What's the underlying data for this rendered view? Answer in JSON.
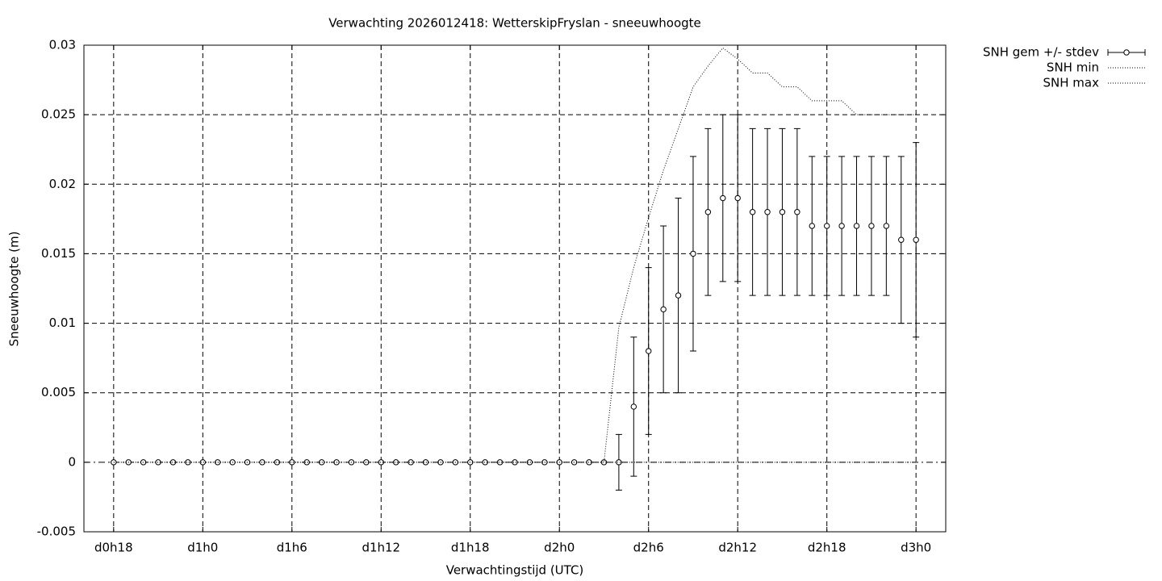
{
  "chart_data": {
    "type": "line",
    "title": "Verwachting 2026012418: WetterskipFryslan - sneeuwhoogte",
    "x_label": "Verwachtingstijd (UTC)",
    "y_label": "Sneeuwhoogte (m)",
    "x": [
      18,
      19,
      20,
      21,
      22,
      23,
      24,
      25,
      26,
      27,
      28,
      29,
      30,
      31,
      32,
      33,
      34,
      35,
      36,
      37,
      38,
      39,
      40,
      41,
      42,
      43,
      44,
      45,
      46,
      47,
      48,
      49,
      50,
      51,
      52,
      53,
      54,
      55,
      56,
      57,
      58,
      59,
      60,
      61,
      62,
      63,
      64,
      65,
      66,
      67,
      68,
      69,
      70,
      71,
      72
    ],
    "series": [
      {
        "name": "SNH gem +/- stdev",
        "color": "#000000",
        "style": "errorbar",
        "values": [
          0,
          0,
          0,
          0,
          0,
          0,
          0,
          0,
          0,
          0,
          0,
          0,
          0,
          0,
          0,
          0,
          0,
          0,
          0,
          0,
          0,
          0,
          0,
          0,
          0,
          0,
          0,
          0,
          0,
          0,
          0,
          0,
          0,
          0,
          0,
          0.004,
          0.008,
          0.011,
          0.012,
          0.015,
          0.018,
          0.019,
          0.019,
          0.018,
          0.018,
          0.018,
          0.018,
          0.017,
          0.017,
          0.017,
          0.017,
          0.017,
          0.017,
          0.016,
          0.016
        ],
        "errors": [
          0,
          0,
          0,
          0,
          0,
          0,
          0,
          0,
          0,
          0,
          0,
          0,
          0,
          0,
          0,
          0,
          0,
          0,
          0,
          0,
          0,
          0,
          0,
          0,
          0,
          0,
          0,
          0,
          0,
          0,
          0,
          0,
          0,
          0,
          0.002,
          0.005,
          0.006,
          0.006,
          0.007,
          0.007,
          0.006,
          0.006,
          0.006,
          0.006,
          0.006,
          0.006,
          0.006,
          0.005,
          0.005,
          0.005,
          0.005,
          0.005,
          0.005,
          0.006,
          0.007
        ]
      },
      {
        "name": "SNH min",
        "color": "#000000",
        "style": "dotted",
        "values": [
          0,
          0,
          0,
          0,
          0,
          0,
          0,
          0,
          0,
          0,
          0,
          0,
          0,
          0,
          0,
          0,
          0,
          0,
          0,
          0,
          0,
          0,
          0,
          0,
          0,
          0,
          0,
          0,
          0,
          0,
          0,
          0,
          0,
          0,
          0,
          0,
          0,
          0,
          0,
          0,
          0,
          0,
          0,
          0,
          0,
          0,
          0,
          0,
          0,
          0,
          0,
          0,
          0,
          0,
          0
        ]
      },
      {
        "name": "SNH max",
        "color": "#000000",
        "style": "dotted",
        "values": [
          0,
          0,
          0,
          0,
          0,
          0,
          0,
          0,
          0,
          0,
          0,
          0,
          0,
          0,
          0,
          0,
          0,
          0,
          0,
          0,
          0,
          0,
          0,
          0,
          0,
          0,
          0,
          0,
          0,
          0,
          0,
          0,
          0,
          0,
          0.0097,
          0.014,
          0.0176,
          0.021,
          0.024,
          0.027,
          0.0285,
          0.0298,
          0.029,
          0.028,
          0.028,
          0.027,
          0.027,
          0.026,
          0.026,
          0.026,
          0.025,
          0.025,
          0.025,
          0.025,
          0.025
        ]
      }
    ],
    "xlim": [
      16,
      74
    ],
    "xticks": [
      {
        "value": 18,
        "label": "d0h18"
      },
      {
        "value": 24,
        "label": "d1h0"
      },
      {
        "value": 30,
        "label": "d1h6"
      },
      {
        "value": 36,
        "label": "d1h12"
      },
      {
        "value": 42,
        "label": "d1h18"
      },
      {
        "value": 48,
        "label": "d2h0"
      },
      {
        "value": 54,
        "label": "d2h6"
      },
      {
        "value": 60,
        "label": "d2h12"
      },
      {
        "value": 66,
        "label": "d2h18"
      },
      {
        "value": 72,
        "label": "d3h0"
      }
    ],
    "ylim": [
      -0.005,
      0.03
    ],
    "yticks": [
      -0.005,
      0,
      0.005,
      0.01,
      0.015,
      0.02,
      0.025,
      0.03
    ],
    "grid": true,
    "legend": "outside-top-right"
  }
}
